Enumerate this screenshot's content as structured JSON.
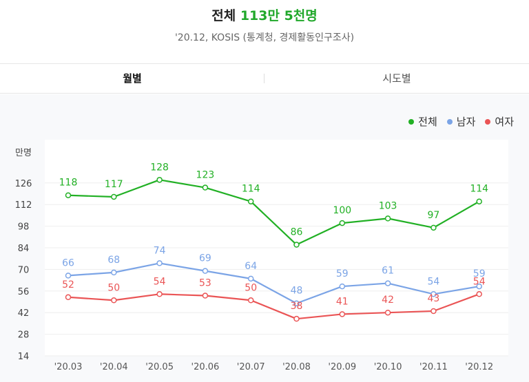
{
  "header": {
    "title_prefix": "전체",
    "title_value": "113만 5천명",
    "subtitle": "'20.12, KOSIS (통계청, 경제활동인구조사)"
  },
  "tabs": [
    {
      "label": "월별",
      "active": true
    },
    {
      "label": "시도별",
      "active": false
    }
  ],
  "colors": {
    "total": "#21b024",
    "male": "#7ba4e6",
    "female": "#ea5455"
  },
  "chart_data": {
    "type": "line",
    "ylabel": "만명",
    "ylim": [
      14,
      140
    ],
    "yticks": [
      14,
      28,
      42,
      56,
      70,
      84,
      98,
      112,
      126
    ],
    "categories": [
      "'20.03",
      "'20.04",
      "'20.05",
      "'20.06",
      "'20.07",
      "'20.08",
      "'20.09",
      "'20.10",
      "'20.11",
      "'20.12"
    ],
    "legend_position": "top-right",
    "series": [
      {
        "name": "전체",
        "key": "total",
        "values": [
          118,
          117,
          128,
          123,
          114,
          86,
          100,
          103,
          97,
          114
        ]
      },
      {
        "name": "남자",
        "key": "male",
        "values": [
          66,
          68,
          74,
          69,
          64,
          48,
          59,
          61,
          54,
          59
        ]
      },
      {
        "name": "여자",
        "key": "female",
        "values": [
          52,
          50,
          54,
          53,
          50,
          38,
          41,
          42,
          43,
          54
        ]
      }
    ]
  }
}
